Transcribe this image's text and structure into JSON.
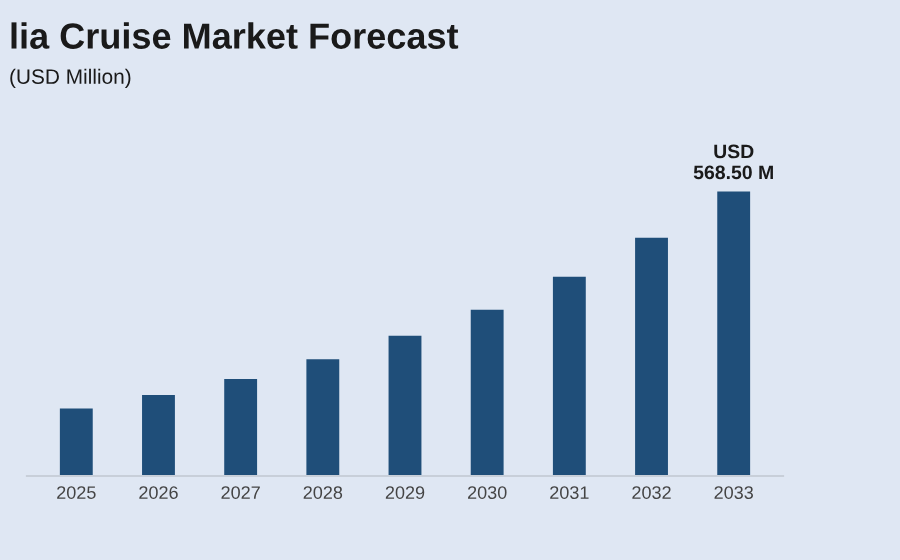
{
  "chart_data": {
    "type": "bar",
    "title": "lia Cruise Market Forecast",
    "subtitle": "(USD Million)",
    "categories": [
      "2025",
      "2026",
      "2027",
      "2028",
      "2029",
      "2030",
      "2031",
      "2032",
      "2033"
    ],
    "values": [
      135,
      162,
      194,
      233,
      280,
      332,
      398,
      476,
      568.5
    ],
    "color": "#1f4e79",
    "value_labels": [
      null,
      null,
      null,
      null,
      null,
      null,
      null,
      null,
      "USD\n568.50 M"
    ],
    "orientation": "vertical"
  }
}
